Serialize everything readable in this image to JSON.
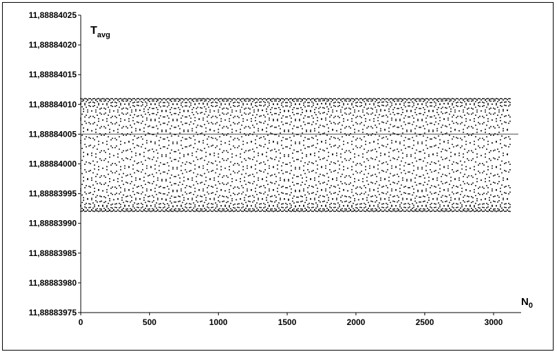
{
  "chart_data": {
    "type": "scatter",
    "title": "",
    "xlabel": {
      "main": "N",
      "sub": "0"
    },
    "ylabel": {
      "main": "T",
      "sub": "avg"
    },
    "xlim": [
      0,
      3200
    ],
    "ylim": [
      11.88883975,
      11.88884025
    ],
    "x_ticks": [
      0,
      500,
      1000,
      1500,
      2000,
      2500,
      3000
    ],
    "x_tick_labels": [
      "0",
      "500",
      "1000",
      "1500",
      "2000",
      "2500",
      "3000"
    ],
    "y_ticks": [
      11.88883975,
      11.8888398,
      11.88883985,
      11.8888399,
      11.88883995,
      11.88884,
      11.88884005,
      11.8888401,
      11.88884015,
      11.8888402,
      11.88884025
    ],
    "y_tick_labels": [
      "11,88883975",
      "11,88883980",
      "11,88883985",
      "11,88883990",
      "11,88883995",
      "11,88884000",
      "11,88884005",
      "11,88884010",
      "11,88884015",
      "11,88884020",
      "11,88884025"
    ],
    "grid": false,
    "reference_line": {
      "y": 11.88884005,
      "color": "#707070"
    },
    "curve_family": {
      "description_values": "periodic dotted curves",
      "center": 11.888840015,
      "amplitude": 9.5e-08,
      "period": 445,
      "x_range": [
        0,
        3125
      ],
      "x_step": 10,
      "phase_offsets": [
        0,
        32,
        64,
        96,
        128,
        160,
        192,
        224,
        256,
        288,
        320,
        352,
        384,
        416
      ],
      "marker_color": "#000000"
    }
  }
}
